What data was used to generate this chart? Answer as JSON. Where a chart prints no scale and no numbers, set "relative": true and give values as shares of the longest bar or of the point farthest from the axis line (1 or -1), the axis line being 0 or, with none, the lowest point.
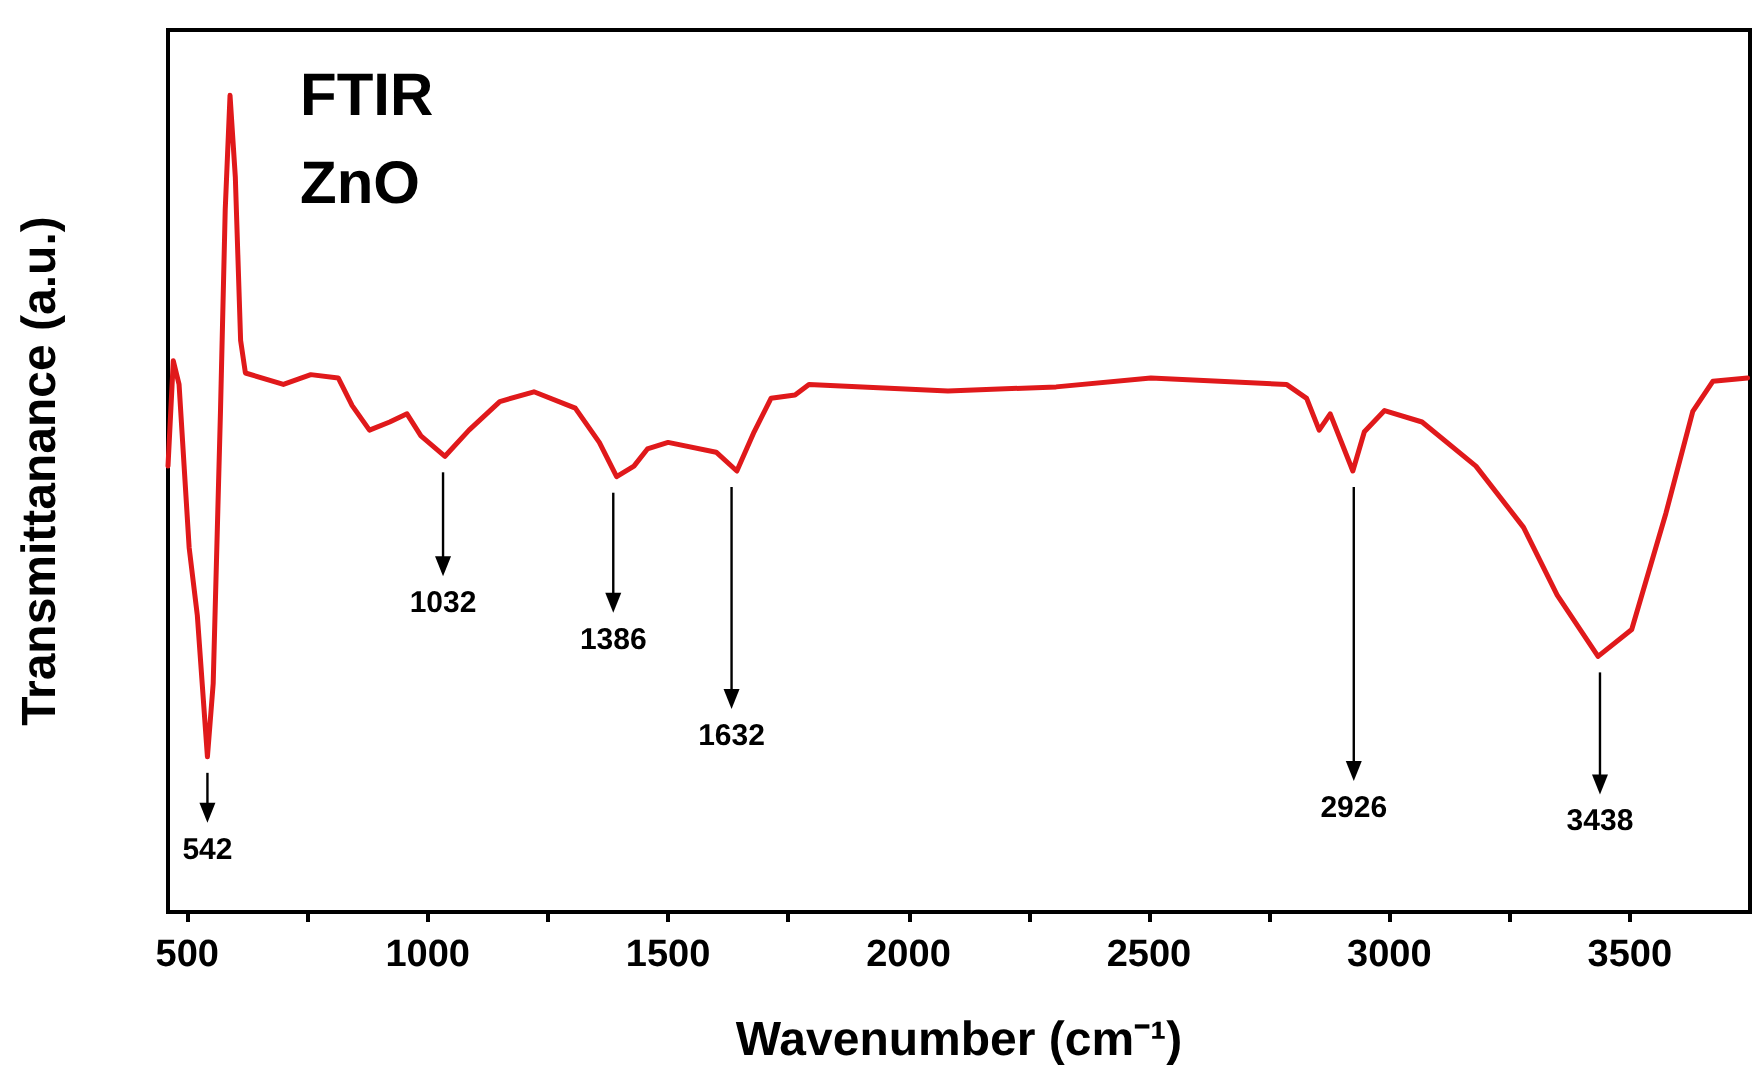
{
  "chart_data": {
    "type": "line",
    "relative": true,
    "title": "FTIR",
    "subtitle": "ZnO",
    "xlabel": "Wavenumber (cm⁻¹)",
    "ylabel": "Transmittanance (a.u.)",
    "xlim": [
      460,
      3750
    ],
    "xticks": [
      500,
      {
        "value": 750,
        "label": null
      },
      1000,
      {
        "value": 1250,
        "label": null
      },
      1500,
      {
        "value": 1750,
        "label": null
      },
      2000,
      {
        "value": 2250,
        "label": null
      },
      2500,
      {
        "value": 2750,
        "label": null
      },
      3000,
      {
        "value": 3250,
        "label": null
      },
      3500
    ],
    "grid": false,
    "marker": "none",
    "line_style": "solid",
    "series": [
      {
        "color": "#e0191b",
        "x": [
          460,
          471,
          483,
          504,
          521,
          542,
          554,
          569,
          579,
          589,
          600,
          611,
          621,
          700,
          757,
          814,
          843,
          879,
          921,
          957,
          986,
          1036,
          1086,
          1150,
          1221,
          1307,
          1357,
          1393,
          1429,
          1457,
          1500,
          1600,
          1643,
          1679,
          1714,
          1764,
          1793,
          2082,
          2307,
          2504,
          2786,
          2828,
          2854,
          2877,
          2924,
          2948,
          2990,
          3068,
          3180,
          3279,
          3349,
          3434,
          3504,
          3575,
          3631,
          3673,
          3745
        ],
        "values": [
          0.546,
          0.675,
          0.646,
          0.446,
          0.363,
          0.19,
          0.28,
          0.61,
          0.86,
          1,
          0.9,
          0.7,
          0.66,
          0.646,
          0.658,
          0.654,
          0.62,
          0.59,
          0.6,
          0.61,
          0.583,
          0.558,
          0.59,
          0.625,
          0.637,
          0.617,
          0.575,
          0.533,
          0.546,
          0.567,
          0.575,
          0.563,
          0.54,
          0.588,
          0.629,
          0.633,
          0.646,
          0.638,
          0.643,
          0.654,
          0.646,
          0.629,
          0.59,
          0.61,
          0.54,
          0.588,
          0.614,
          0.6,
          0.546,
          0.471,
          0.388,
          0.313,
          0.346,
          0.488,
          0.613,
          0.65,
          0.654
        ]
      }
    ],
    "annotations": [
      {
        "text": "542",
        "x": 542,
        "y": 0.19
      },
      {
        "text": "1032",
        "x": 1032,
        "y": 0.558
      },
      {
        "text": "1386",
        "x": 1386,
        "y": 0.533
      },
      {
        "text": "1632",
        "x": 1632,
        "y": 0.54
      },
      {
        "text": "2926",
        "x": 2926,
        "y": 0.54
      },
      {
        "text": "3438",
        "x": 3438,
        "y": 0.313
      }
    ]
  }
}
